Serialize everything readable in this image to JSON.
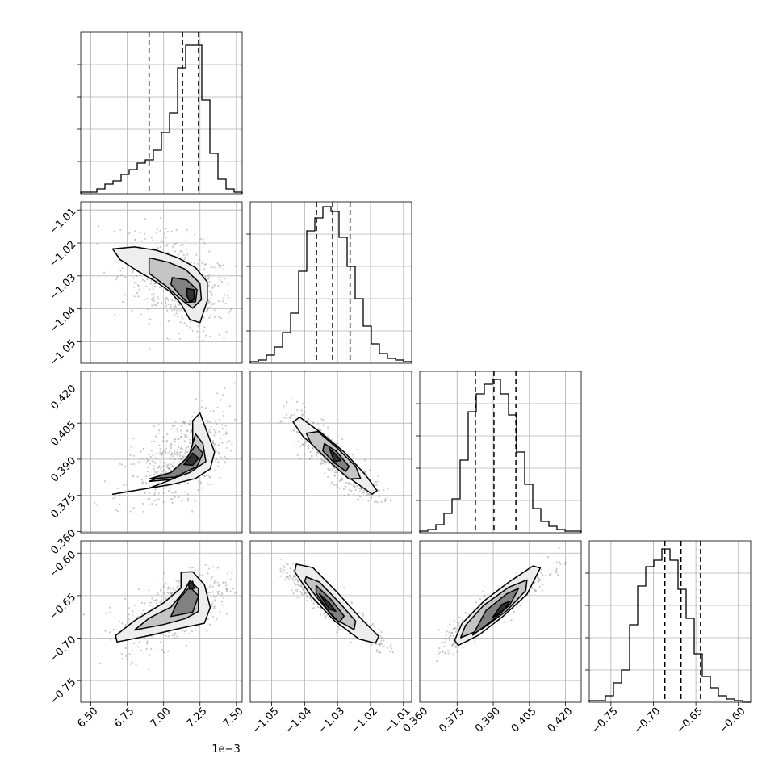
{
  "chart_data": {
    "type": "corner",
    "parameters": [
      {
        "range": [
          0.00643,
          0.00754
        ],
        "ticks": [
          0.0065,
          0.00675,
          0.007,
          0.00725,
          0.0075
        ],
        "tick_labels": [
          "6.50",
          "6.75",
          "7.00",
          "7.25",
          "7.50"
        ],
        "offset_label": "1e−3",
        "quantiles": [
          0.0069,
          0.00713,
          0.00724
        ]
      },
      {
        "range": [
          -1.0565,
          -1.0075
        ],
        "ticks": [
          -1.05,
          -1.04,
          -1.03,
          -1.02,
          -1.01
        ],
        "tick_labels": [
          "−1.05",
          "−1.04",
          "−1.03",
          "−1.02",
          "−1.01"
        ],
        "quantiles": [
          -1.0364,
          -1.0315,
          -1.0262
        ]
      },
      {
        "range": [
          0.3595,
          0.4265
        ],
        "ticks": [
          0.36,
          0.375,
          0.39,
          0.405,
          0.42
        ],
        "tick_labels": [
          "0.360",
          "0.375",
          "0.390",
          "0.405",
          "0.420"
        ],
        "quantiles": [
          0.3826,
          0.3903,
          0.3994
        ]
      },
      {
        "range": [
          -0.7755,
          -0.5855
        ],
        "ticks": [
          -0.75,
          -0.7,
          -0.65,
          -0.6
        ],
        "tick_labels": [
          "−0.75",
          "−0.70",
          "−0.65",
          "−0.60"
        ],
        "quantiles": [
          -0.6865,
          -0.6675,
          -0.6445
        ]
      }
    ],
    "histograms": [
      [
        0.01,
        0.01,
        0.03,
        0.06,
        0.08,
        0.12,
        0.15,
        0.19,
        0.21,
        0.27,
        0.38,
        0.5,
        0.78,
        0.92,
        0.92,
        0.58,
        0.25,
        0.09,
        0.03,
        0.01
      ],
      [
        0.01,
        0.02,
        0.05,
        0.1,
        0.19,
        0.31,
        0.57,
        0.82,
        0.9,
        0.97,
        0.94,
        0.78,
        0.6,
        0.4,
        0.23,
        0.12,
        0.06,
        0.03,
        0.02,
        0.01
      ],
      [
        0.01,
        0.02,
        0.05,
        0.12,
        0.21,
        0.45,
        0.75,
        0.86,
        0.92,
        0.95,
        0.86,
        0.73,
        0.5,
        0.3,
        0.15,
        0.07,
        0.04,
        0.02,
        0.01,
        0.01
      ],
      [
        0.01,
        0.01,
        0.04,
        0.12,
        0.2,
        0.48,
        0.72,
        0.84,
        0.88,
        0.95,
        0.88,
        0.7,
        0.52,
        0.3,
        0.16,
        0.09,
        0.04,
        0.02,
        0.01,
        0.0
      ]
    ],
    "pairs": [
      {
        "x": 0,
        "y": 1,
        "mean": [
          0.0071,
          -1.032
        ],
        "sd": [
          0.00016,
          0.0065
        ],
        "rho": -0.45,
        "samples_range": [
          [
            0.00645,
            0.0075
          ],
          [
            -1.055,
            -1.012
          ]
        ],
        "contours": [
          [
            [
              0.00665,
              -1.0218
            ],
            [
              0.0068,
              -1.0212
            ],
            [
              0.00695,
              -1.0222
            ],
            [
              0.0071,
              -1.0245
            ],
            [
              0.00722,
              -1.0275
            ],
            [
              0.0073,
              -1.0318
            ],
            [
              0.0073,
              -1.0375
            ],
            [
              0.00725,
              -1.0442
            ],
            [
              0.00718,
              -1.0432
            ],
            [
              0.00712,
              -1.0385
            ],
            [
              0.00705,
              -1.035
            ],
            [
              0.00695,
              -1.0318
            ],
            [
              0.00682,
              -1.0285
            ],
            [
              0.0067,
              -1.025
            ]
          ],
          [
            [
              0.0069,
              -1.0245
            ],
            [
              0.00703,
              -1.0258
            ],
            [
              0.00715,
              -1.028
            ],
            [
              0.00725,
              -1.0322
            ],
            [
              0.00726,
              -1.0372
            ],
            [
              0.0072,
              -1.0398
            ],
            [
              0.00712,
              -1.0372
            ],
            [
              0.00702,
              -1.0332
            ],
            [
              0.0069,
              -1.0292
            ]
          ],
          [
            [
              0.00706,
              -1.0305
            ],
            [
              0.00716,
              -1.0312
            ],
            [
              0.00723,
              -1.0342
            ],
            [
              0.00722,
              -1.0378
            ],
            [
              0.00716,
              -1.038
            ],
            [
              0.0071,
              -1.0352
            ],
            [
              0.00705,
              -1.0325
            ]
          ],
          [
            [
              0.00716,
              -1.0338
            ],
            [
              0.00721,
              -1.0342
            ],
            [
              0.00721,
              -1.0372
            ],
            [
              0.00718,
              -1.0378
            ],
            [
              0.00716,
              -1.036
            ]
          ]
        ]
      },
      {
        "x": 0,
        "y": 2,
        "mean": [
          0.0071,
          0.389
        ],
        "sd": [
          0.00016,
          0.0096
        ],
        "rho": 0.6,
        "samples_range": [
          [
            0.00645,
            0.0075
          ],
          [
            0.368,
            0.424
          ]
        ],
        "contours": [
          [
            [
              0.00665,
              0.3755
            ],
            [
              0.0069,
              0.378
            ],
            [
              0.00708,
              0.3822
            ],
            [
              0.00718,
              0.3865
            ],
            [
              0.0072,
              0.3955
            ],
            [
              0.0072,
              0.406
            ],
            [
              0.00725,
              0.4092
            ],
            [
              0.0073,
              0.401
            ],
            [
              0.00735,
              0.393
            ],
            [
              0.00732,
              0.386
            ],
            [
              0.00722,
              0.382
            ],
            [
              0.00705,
              0.3795
            ],
            [
              0.0068,
              0.377
            ]
          ],
          [
            [
              0.0069,
              0.3808
            ],
            [
              0.00703,
              0.3838
            ],
            [
              0.00712,
              0.387
            ],
            [
              0.00718,
              0.3925
            ],
            [
              0.00722,
              0.4005
            ],
            [
              0.00727,
              0.3965
            ],
            [
              0.00729,
              0.389
            ],
            [
              0.00718,
              0.3845
            ],
            [
              0.00704,
              0.3815
            ]
          ],
          [
            [
              0.0069,
              0.3818
            ],
            [
              0.00705,
              0.3845
            ],
            [
              0.00716,
              0.3905
            ],
            [
              0.00722,
              0.396
            ],
            [
              0.00727,
              0.3925
            ],
            [
              0.00723,
              0.387
            ],
            [
              0.00708,
              0.3826
            ]
          ],
          [
            [
              0.00714,
              0.3878
            ],
            [
              0.0072,
              0.3925
            ],
            [
              0.00724,
              0.3905
            ],
            [
              0.0072,
              0.3875
            ]
          ]
        ]
      },
      {
        "x": 1,
        "y": 2,
        "mean": [
          -1.031,
          0.39
        ],
        "sd": [
          0.0068,
          0.0095
        ],
        "rho": -0.92,
        "samples_range": [
          [
            -1.0475,
            -1.013
          ],
          [
            0.372,
            0.416
          ]
        ],
        "contours": [
          [
            [
              -1.0435,
              0.4055
            ],
            [
              -1.0415,
              0.4075
            ],
            [
              -1.035,
              0.401
            ],
            [
              -1.028,
              0.393
            ],
            [
              -1.0215,
              0.3835
            ],
            [
              -1.018,
              0.377
            ],
            [
              -1.0195,
              0.3755
            ],
            [
              -1.026,
              0.3818
            ],
            [
              -1.033,
              0.3905
            ],
            [
              -1.0405,
              0.3995
            ]
          ],
          [
            [
              -1.0395,
              0.4008
            ],
            [
              -1.036,
              0.4015
            ],
            [
              -1.03,
              0.3945
            ],
            [
              -1.0245,
              0.387
            ],
            [
              -1.023,
              0.382
            ],
            [
              -1.0265,
              0.3818
            ],
            [
              -1.0325,
              0.389
            ],
            [
              -1.038,
              0.3965
            ]
          ],
          [
            [
              -1.034,
              0.3965
            ],
            [
              -1.0305,
              0.3935
            ],
            [
              -1.0265,
              0.387
            ],
            [
              -1.0275,
              0.385
            ],
            [
              -1.031,
              0.3885
            ],
            [
              -1.0345,
              0.3935
            ]
          ],
          [
            [
              -1.0325,
              0.3945
            ],
            [
              -1.0305,
              0.392
            ],
            [
              -1.029,
              0.3895
            ],
            [
              -1.031,
              0.389
            ]
          ]
        ]
      },
      {
        "x": 0,
        "y": 3,
        "mean": [
          0.0071,
          -0.664
        ],
        "sd": [
          0.00016,
          0.02
        ],
        "rho": 0.6,
        "samples_range": [
          [
            0.00645,
            0.0075
          ],
          [
            -0.74,
            -0.592
          ]
        ],
        "contours": [
          [
            [
              0.00667,
              -0.697
            ],
            [
              0.00668,
              -0.7045
            ],
            [
              0.0069,
              -0.697
            ],
            [
              0.0071,
              -0.689
            ],
            [
              0.00728,
              -0.6825
            ],
            [
              0.00732,
              -0.664
            ],
            [
              0.00728,
              -0.637
            ],
            [
              0.0072,
              -0.622
            ],
            [
              0.00712,
              -0.6225
            ],
            [
              0.00712,
              -0.641
            ],
            [
              0.007,
              -0.6585
            ],
            [
              0.0068,
              -0.6795
            ]
          ],
          [
            [
              0.0068,
              -0.6905
            ],
            [
              0.007,
              -0.684
            ],
            [
              0.00715,
              -0.677
            ],
            [
              0.00724,
              -0.6685
            ],
            [
              0.00724,
              -0.642
            ],
            [
              0.00718,
              -0.6325
            ],
            [
              0.00714,
              -0.645
            ],
            [
              0.00705,
              -0.6635
            ],
            [
              0.0069,
              -0.6765
            ]
          ],
          [
            [
              0.00705,
              -0.6745
            ],
            [
              0.0072,
              -0.6695
            ],
            [
              0.00724,
              -0.6505
            ],
            [
              0.00718,
              -0.6395
            ],
            [
              0.0071,
              -0.6555
            ]
          ],
          [
            [
              0.00717,
              -0.6365
            ],
            [
              0.0072,
              -0.633
            ],
            [
              0.00721,
              -0.6415
            ],
            [
              0.00718,
              -0.6425
            ]
          ]
        ]
      },
      {
        "x": 1,
        "y": 3,
        "mean": [
          -1.031,
          -0.664
        ],
        "sd": [
          0.0068,
          0.02
        ],
        "rho": -0.93,
        "samples_range": [
          [
            -1.0475,
            -1.012
          ],
          [
            -0.723,
            -0.606
          ]
        ],
        "contours": [
          [
            [
              -1.0425,
              -0.613
            ],
            [
              -1.0375,
              -0.617
            ],
            [
              -1.0305,
              -0.6445
            ],
            [
              -1.023,
              -0.6765
            ],
            [
              -1.0175,
              -0.698
            ],
            [
              -1.0185,
              -0.706
            ],
            [
              -1.0235,
              -0.701
            ],
            [
              -1.031,
              -0.6795
            ],
            [
              -1.038,
              -0.6505
            ],
            [
              -1.043,
              -0.622
            ]
          ],
          [
            [
              -1.0395,
              -0.628
            ],
            [
              -1.0355,
              -0.634
            ],
            [
              -1.0295,
              -0.658
            ],
            [
              -1.0245,
              -0.68
            ],
            [
              -1.025,
              -0.69
            ],
            [
              -1.031,
              -0.677
            ],
            [
              -1.0365,
              -0.651
            ],
            [
              -1.04,
              -0.633
            ]
          ],
          [
            [
              -1.0365,
              -0.638
            ],
            [
              -1.032,
              -0.6545
            ],
            [
              -1.028,
              -0.674
            ],
            [
              -1.0295,
              -0.6815
            ],
            [
              -1.0325,
              -0.6695
            ],
            [
              -1.0365,
              -0.647
            ]
          ],
          [
            [
              -1.0355,
              -0.648
            ],
            [
              -1.0325,
              -0.6585
            ],
            [
              -1.0305,
              -0.6685
            ],
            [
              -1.0325,
              -0.666
            ]
          ]
        ]
      },
      {
        "x": 2,
        "y": 3,
        "mean": [
          0.3905,
          -0.665
        ],
        "sd": [
          0.0095,
          0.02
        ],
        "rho": 0.93,
        "samples_range": [
          [
            0.364,
            0.424
          ],
          [
            -0.728,
            -0.59
          ]
        ],
        "contours": [
          [
            [
              0.374,
              -0.7025
            ],
            [
              0.3755,
              -0.7085
            ],
            [
              0.384,
              -0.6965
            ],
            [
              0.394,
              -0.6745
            ],
            [
              0.404,
              -0.6485
            ],
            [
              0.4095,
              -0.6175
            ],
            [
              0.4065,
              -0.615
            ],
            [
              0.396,
              -0.635
            ],
            [
              0.3865,
              -0.6555
            ],
            [
              0.377,
              -0.683
            ]
          ],
          [
            [
              0.3765,
              -0.6995
            ],
            [
              0.3855,
              -0.689
            ],
            [
              0.3955,
              -0.668
            ],
            [
              0.4035,
              -0.644
            ],
            [
              0.404,
              -0.6315
            ],
            [
              0.3965,
              -0.64
            ],
            [
              0.386,
              -0.6615
            ],
            [
              0.3785,
              -0.685
            ]
          ],
          [
            [
              0.3815,
              -0.6965
            ],
            [
              0.3895,
              -0.6795
            ],
            [
              0.397,
              -0.6605
            ],
            [
              0.4005,
              -0.6415
            ],
            [
              0.3955,
              -0.648
            ],
            [
              0.387,
              -0.6675
            ]
          ],
          [
            [
              0.3895,
              -0.6765
            ],
            [
              0.3945,
              -0.6665
            ],
            [
              0.397,
              -0.6565
            ],
            [
              0.3935,
              -0.6605
            ]
          ]
        ]
      }
    ]
  }
}
